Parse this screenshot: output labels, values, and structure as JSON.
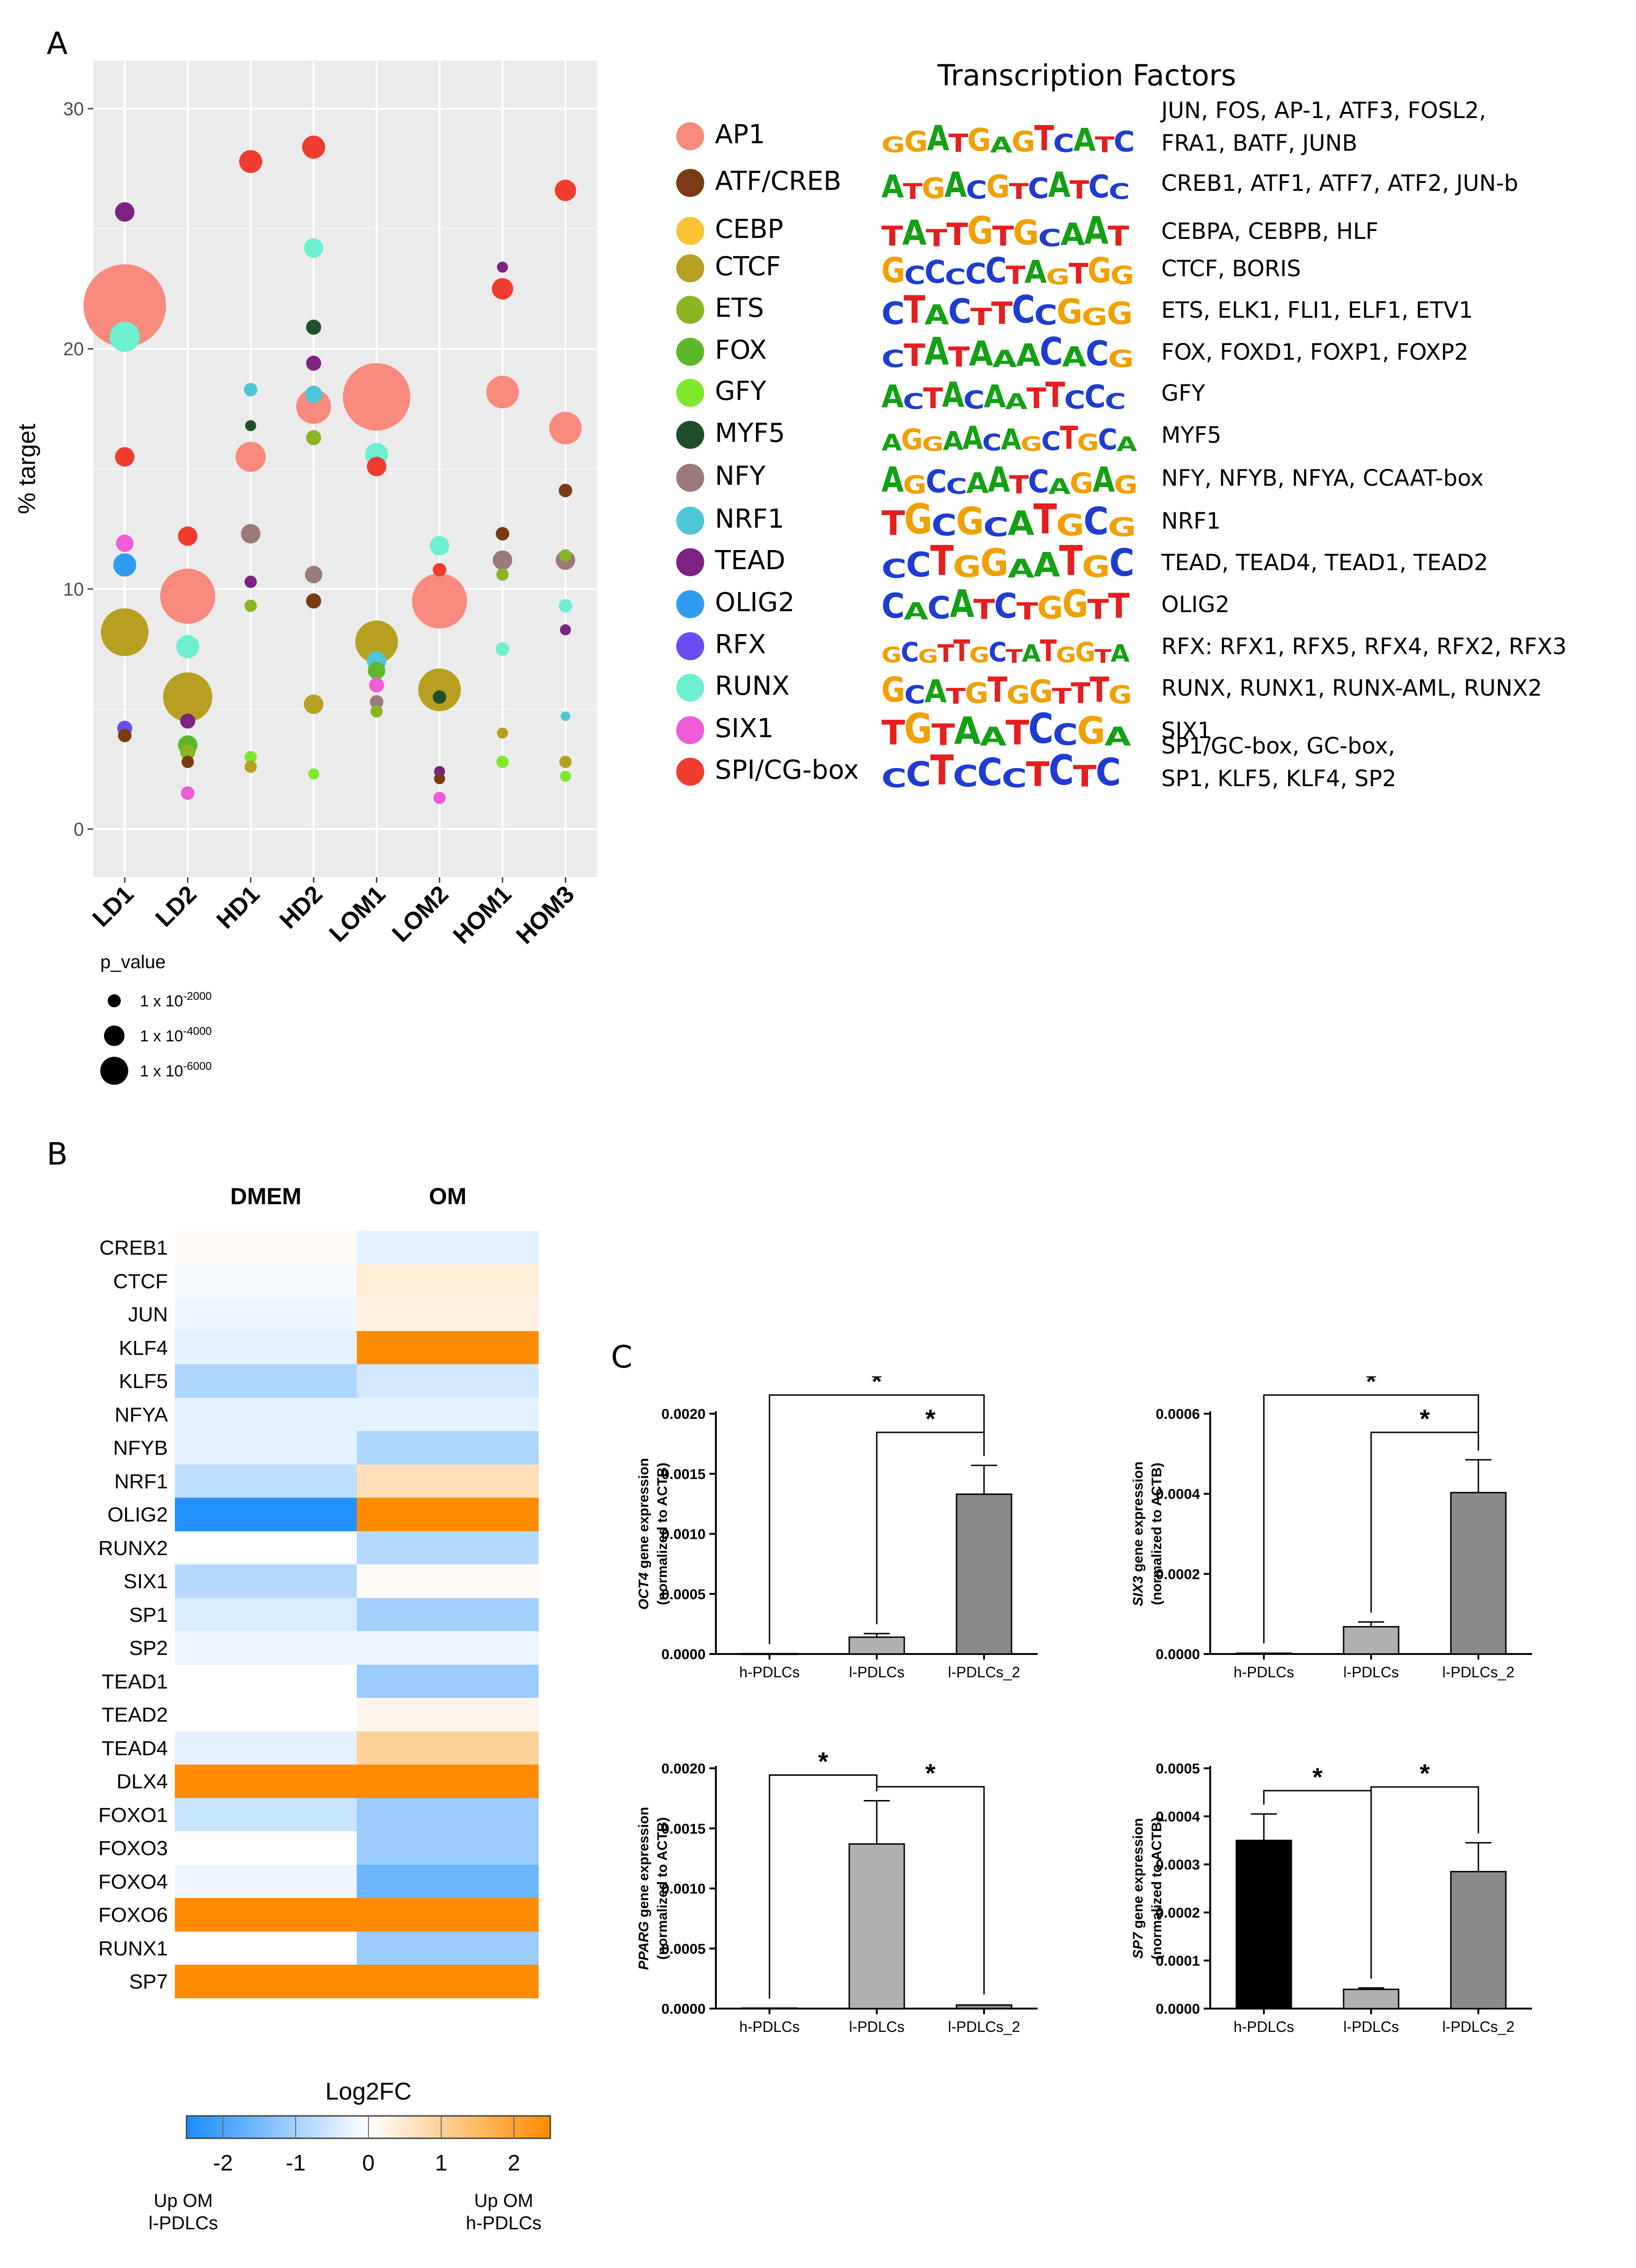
{
  "panels": {
    "a": "A",
    "b": "B",
    "c": "C"
  },
  "chart_data": [
    {
      "id": "bubble",
      "type": "scatter",
      "ylabel": "% target",
      "ylim": [
        -2,
        32
      ],
      "yticks": [
        0,
        10,
        20,
        30
      ],
      "categories": [
        "LD1",
        "LD2",
        "HD1",
        "HD2",
        "LOM1",
        "LOM2",
        "HOM1",
        "HOM3"
      ],
      "size_legend": {
        "title": "p_value",
        "entries": [
          {
            "base": "1 x 10",
            "exp": "-2000",
            "size": 2000
          },
          {
            "base": "1 x 10",
            "exp": "-4000",
            "size": 4000
          },
          {
            "base": "1 x 10",
            "exp": "-6000",
            "size": 6000
          }
        ]
      },
      "points": [
        {
          "x": "LD1",
          "y": 21.8,
          "tf": "AP1",
          "size": 4500
        },
        {
          "x": "LD1",
          "y": 25.7,
          "tf": "TEAD",
          "size": 250
        },
        {
          "x": "LD1",
          "y": 20.5,
          "tf": "RUNX",
          "size": 600
        },
        {
          "x": "LD1",
          "y": 15.5,
          "tf": "SPI/CG-box",
          "size": 250
        },
        {
          "x": "LD1",
          "y": 11.9,
          "tf": "SIX1",
          "size": 200
        },
        {
          "x": "LD1",
          "y": 11.0,
          "tf": "OLIG2",
          "size": 350
        },
        {
          "x": "LD1",
          "y": 8.2,
          "tf": "CTCF",
          "size": 1500
        },
        {
          "x": "LD1",
          "y": 4.2,
          "tf": "RFX",
          "size": 150
        },
        {
          "x": "LD1",
          "y": 3.9,
          "tf": "ATF/CREB",
          "size": 120
        },
        {
          "x": "LD2",
          "y": 12.2,
          "tf": "SPI/CG-box",
          "size": 250
        },
        {
          "x": "LD2",
          "y": 9.7,
          "tf": "AP1",
          "size": 2000
        },
        {
          "x": "LD2",
          "y": 7.6,
          "tf": "RUNX",
          "size": 350
        },
        {
          "x": "LD2",
          "y": 5.5,
          "tf": "CTCF",
          "size": 1600
        },
        {
          "x": "LD2",
          "y": 4.5,
          "tf": "TEAD",
          "size": 150
        },
        {
          "x": "LD2",
          "y": 3.5,
          "tf": "FOX",
          "size": 250
        },
        {
          "x": "LD2",
          "y": 3.2,
          "tf": "ETS",
          "size": 150
        },
        {
          "x": "LD2",
          "y": 2.8,
          "tf": "ATF/CREB",
          "size": 100
        },
        {
          "x": "LD2",
          "y": 1.5,
          "tf": "SIX1",
          "size": 120
        },
        {
          "x": "HD1",
          "y": 27.8,
          "tf": "SPI/CG-box",
          "size": 350
        },
        {
          "x": "HD1",
          "y": 18.3,
          "tf": "NRF1",
          "size": 120
        },
        {
          "x": "HD1",
          "y": 16.8,
          "tf": "MYF5",
          "size": 80
        },
        {
          "x": "HD1",
          "y": 15.5,
          "tf": "AP1",
          "size": 600
        },
        {
          "x": "HD1",
          "y": 12.3,
          "tf": "NFY",
          "size": 250
        },
        {
          "x": "HD1",
          "y": 10.3,
          "tf": "TEAD",
          "size": 100
        },
        {
          "x": "HD1",
          "y": 9.3,
          "tf": "ETS",
          "size": 100
        },
        {
          "x": "HD1",
          "y": 3.0,
          "tf": "GFY",
          "size": 100
        },
        {
          "x": "HD1",
          "y": 2.6,
          "tf": "CTCF",
          "size": 100
        },
        {
          "x": "HD2",
          "y": 28.4,
          "tf": "SPI/CG-box",
          "size": 350
        },
        {
          "x": "HD2",
          "y": 24.2,
          "tf": "RUNX",
          "size": 250
        },
        {
          "x": "HD2",
          "y": 20.9,
          "tf": "MYF5",
          "size": 150
        },
        {
          "x": "HD2",
          "y": 19.4,
          "tf": "TEAD",
          "size": 150
        },
        {
          "x": "HD2",
          "y": 18.1,
          "tf": "NRF1",
          "size": 200
        },
        {
          "x": "HD2",
          "y": 17.6,
          "tf": "AP1",
          "size": 800
        },
        {
          "x": "HD2",
          "y": 16.3,
          "tf": "ETS",
          "size": 150
        },
        {
          "x": "HD2",
          "y": 10.6,
          "tf": "NFY",
          "size": 200
        },
        {
          "x": "HD2",
          "y": 9.5,
          "tf": "ATF/CREB",
          "size": 150
        },
        {
          "x": "HD2",
          "y": 5.2,
          "tf": "CTCF",
          "size": 250
        },
        {
          "x": "HD2",
          "y": 2.3,
          "tf": "GFY",
          "size": 80
        },
        {
          "x": "LOM1",
          "y": 18.0,
          "tf": "AP1",
          "size": 3000
        },
        {
          "x": "LOM1",
          "y": 15.6,
          "tf": "RUNX",
          "size": 350
        },
        {
          "x": "LOM1",
          "y": 15.1,
          "tf": "SPI/CG-box",
          "size": 250
        },
        {
          "x": "LOM1",
          "y": 7.8,
          "tf": "CTCF",
          "size": 1200
        },
        {
          "x": "LOM1",
          "y": 7.0,
          "tf": "NRF1",
          "size": 250
        },
        {
          "x": "LOM1",
          "y": 6.6,
          "tf": "FOX",
          "size": 200
        },
        {
          "x": "LOM1",
          "y": 6.0,
          "tf": "SIX1",
          "size": 150
        },
        {
          "x": "LOM1",
          "y": 5.3,
          "tf": "NFY",
          "size": 120
        },
        {
          "x": "LOM1",
          "y": 4.9,
          "tf": "ETS",
          "size": 100
        },
        {
          "x": "LOM2",
          "y": 11.8,
          "tf": "RUNX",
          "size": 250
        },
        {
          "x": "LOM2",
          "y": 10.8,
          "tf": "SPI/CG-box",
          "size": 120
        },
        {
          "x": "LOM2",
          "y": 9.5,
          "tf": "AP1",
          "size": 2000
        },
        {
          "x": "LOM2",
          "y": 5.8,
          "tf": "CTCF",
          "size": 1200
        },
        {
          "x": "LOM2",
          "y": 5.5,
          "tf": "MYF5",
          "size": 120
        },
        {
          "x": "LOM2",
          "y": 2.4,
          "tf": "TEAD",
          "size": 80
        },
        {
          "x": "LOM2",
          "y": 2.1,
          "tf": "ATF/CREB",
          "size": 80
        },
        {
          "x": "LOM2",
          "y": 1.3,
          "tf": "SIX1",
          "size": 100
        },
        {
          "x": "HOM1",
          "y": 23.4,
          "tf": "TEAD",
          "size": 80
        },
        {
          "x": "HOM1",
          "y": 22.5,
          "tf": "SPI/CG-box",
          "size": 300
        },
        {
          "x": "HOM1",
          "y": 18.2,
          "tf": "AP1",
          "size": 700
        },
        {
          "x": "HOM1",
          "y": 12.3,
          "tf": "ATF/CREB",
          "size": 120
        },
        {
          "x": "HOM1",
          "y": 11.2,
          "tf": "NFY",
          "size": 250
        },
        {
          "x": "HOM1",
          "y": 10.6,
          "tf": "ETS",
          "size": 100
        },
        {
          "x": "HOM1",
          "y": 7.5,
          "tf": "RUNX",
          "size": 120
        },
        {
          "x": "HOM1",
          "y": 4.0,
          "tf": "CTCF",
          "size": 80
        },
        {
          "x": "HOM1",
          "y": 2.8,
          "tf": "GFY",
          "size": 100
        },
        {
          "x": "HOM3",
          "y": 26.6,
          "tf": "SPI/CG-box",
          "size": 300
        },
        {
          "x": "HOM3",
          "y": 16.7,
          "tf": "AP1",
          "size": 700
        },
        {
          "x": "HOM3",
          "y": 14.1,
          "tf": "ATF/CREB",
          "size": 120
        },
        {
          "x": "HOM3",
          "y": 11.4,
          "tf": "ETS",
          "size": 100
        },
        {
          "x": "HOM3",
          "y": 11.2,
          "tf": "NFY",
          "size": 250
        },
        {
          "x": "HOM3",
          "y": 9.3,
          "tf": "RUNX",
          "size": 120
        },
        {
          "x": "HOM3",
          "y": 8.3,
          "tf": "TEAD",
          "size": 80
        },
        {
          "x": "HOM3",
          "y": 4.7,
          "tf": "NRF1",
          "size": 60
        },
        {
          "x": "HOM3",
          "y": 2.8,
          "tf": "CTCF",
          "size": 100
        },
        {
          "x": "HOM3",
          "y": 2.2,
          "tf": "GFY",
          "size": 80
        }
      ]
    },
    {
      "id": "heatmap",
      "type": "heatmap",
      "columns": [
        "DMEM",
        "OM"
      ],
      "rows": [
        "CREB1",
        "CTCF",
        "JUN",
        "KLF4",
        "KLF5",
        "NFYA",
        "NFYB",
        "NRF1",
        "OLIG2",
        "RUNX2",
        "SIX1",
        "SP1",
        "SP2",
        "TEAD1",
        "TEAD2",
        "TEAD4",
        "DLX4",
        "FOXO1",
        "FOXO3",
        "FOXO4",
        "FOXO6",
        "RUNX1",
        "SP7"
      ],
      "values": [
        [
          0.1,
          -0.3
        ],
        [
          -0.1,
          0.4
        ],
        [
          -0.2,
          0.3
        ],
        [
          -0.3,
          2.5
        ],
        [
          -0.9,
          -0.5
        ],
        [
          -0.3,
          -0.3
        ],
        [
          -0.3,
          -0.9
        ],
        [
          -0.7,
          0.7
        ],
        [
          -2.4,
          2.5
        ],
        [
          0.0,
          -0.8
        ],
        [
          -0.8,
          0.1
        ],
        [
          -0.4,
          -1.0
        ],
        [
          -0.2,
          -0.2
        ],
        [
          0.0,
          -1.1
        ],
        [
          0.0,
          0.2
        ],
        [
          -0.3,
          1.0
        ],
        [
          2.5,
          2.5
        ],
        [
          -0.6,
          -1.1
        ],
        [
          0.0,
          -1.1
        ],
        [
          -0.2,
          -1.6
        ],
        [
          2.5,
          2.5
        ],
        [
          0.0,
          -1.1
        ],
        [
          2.5,
          2.5
        ]
      ],
      "colorbar": {
        "title": "Log2FC",
        "range": [
          -2.5,
          2.5
        ],
        "ticks": [
          -2,
          -1,
          0,
          1,
          2
        ],
        "low_color": "#1a8cff",
        "mid_color": "#ffffff",
        "high_color": "#ff8c00"
      },
      "annotations": {
        "left": [
          "Up OM",
          "l-PDLCs"
        ],
        "right": [
          "Up OM",
          "h-PDLCs"
        ]
      }
    },
    {
      "id": "oct4",
      "type": "bar",
      "gene": "OCT4",
      "ylabel_rest": " gene expression",
      "ylabel_line2": "(normalized to ACTB)",
      "categories": [
        "h-PDLCs",
        "l-PDLCs",
        "l-PDLCs_2"
      ],
      "values": [
        3e-06,
        0.00014,
        0.00133
      ],
      "errors": [
        1e-06,
        3e-05,
        0.00024
      ],
      "colors": [
        "#000000",
        "#b0b0b0",
        "#8a8a8a"
      ],
      "ylim": [
        0,
        0.002
      ],
      "yticks": [
        "0.0000",
        "0.0005",
        "0.0010",
        "0.0015",
        "0.0020"
      ],
      "significance": [
        {
          "from": 0,
          "to": 2,
          "label": "*"
        },
        {
          "from": 1,
          "to": 2,
          "label": "*"
        }
      ]
    },
    {
      "id": "six3",
      "type": "bar",
      "gene": "SIX3",
      "ylabel_rest": " gene expression",
      "ylabel_line2": "(normalized to ACTB)",
      "categories": [
        "h-PDLCs",
        "l-PDLCs",
        "l-PDLCs_2"
      ],
      "values": [
        2e-06,
        6.8e-05,
        0.000403
      ],
      "errors": [
        1e-06,
        1.2e-05,
        8.2e-05
      ],
      "colors": [
        "#000000",
        "#b0b0b0",
        "#8a8a8a"
      ],
      "ylim": [
        0,
        0.0006
      ],
      "yticks": [
        "0.0000",
        "0.0002",
        "0.0004",
        "0.0006"
      ],
      "significance": [
        {
          "from": 0,
          "to": 2,
          "label": "*"
        },
        {
          "from": 1,
          "to": 2,
          "label": "*"
        }
      ]
    },
    {
      "id": "pparg",
      "type": "bar",
      "gene": "PPARG",
      "ylabel_rest": " gene expression",
      "ylabel_line2": "(normalized to ACTB)",
      "categories": [
        "h-PDLCs",
        "l-PDLCs",
        "l-PDLCs_2"
      ],
      "values": [
        4e-06,
        0.00137,
        3e-05
      ],
      "errors": [
        1e-06,
        0.00036,
        1e-05
      ],
      "colors": [
        "#000000",
        "#b0b0b0",
        "#8a8a8a"
      ],
      "ylim": [
        0,
        0.002
      ],
      "yticks": [
        "0.0000",
        "0.0005",
        "0.0010",
        "0.0015",
        "0.0020"
      ],
      "significance": [
        {
          "from": 0,
          "to": 1,
          "label": "*"
        },
        {
          "from": 1,
          "to": 2,
          "label": "*"
        }
      ]
    },
    {
      "id": "sp7",
      "type": "bar",
      "gene": "SP7",
      "ylabel_rest": " gene expression",
      "ylabel_line2": "(normalized to ACTB)",
      "categories": [
        "h-PDLCs",
        "l-PDLCs",
        "l-PDLCs_2"
      ],
      "values": [
        0.00035,
        4e-05,
        0.000285
      ],
      "errors": [
        5.5e-05,
        3e-06,
        6e-05
      ],
      "colors": [
        "#000000",
        "#b0b0b0",
        "#8a8a8a"
      ],
      "ylim": [
        0,
        0.0005
      ],
      "yticks": [
        "0.0000",
        "0.0001",
        "0.0002",
        "0.0003",
        "0.0004",
        "0.0005"
      ],
      "significance": [
        {
          "from": 0,
          "to": 1,
          "label": "*"
        },
        {
          "from": 1,
          "to": 2,
          "label": "*"
        }
      ]
    }
  ],
  "tf_legend": {
    "title": "Transcription Factors",
    "items": [
      {
        "name": "AP1",
        "color": "#f88a7e",
        "motif": "GGATGAGTCATC",
        "genes": "JUN, FOS, AP-1, ATF3, FOSL2,\nFRA1, BATF, JUNB"
      },
      {
        "name": "ATF/CREB",
        "color": "#7a3a14",
        "motif": "ATGACGTCATCC",
        "genes": "CREB1, ATF1, ATF7, ATF2, JUN-b"
      },
      {
        "name": "CEBP",
        "color": "#f8c233",
        "motif": "TATTGTGCAAT",
        "genes": "CEBPA, CEBPB, HLF"
      },
      {
        "name": "CTCF",
        "color": "#b7a020",
        "motif": "GCCCCCTAGTGG",
        "genes": "CTCF, BORIS"
      },
      {
        "name": "ETS",
        "color": "#8ab422",
        "motif": "CTACTTCCGGG",
        "genes": "ETS, ELK1, FLI1, ELF1, ETV1"
      },
      {
        "name": "FOX",
        "color": "#5cb82a",
        "motif": "CTATAAACACG",
        "genes": "FOX, FOXD1, FOXP1, FOXP2"
      },
      {
        "name": "GFY",
        "color": "#7ee82e",
        "motif": "ACTACAATTCCC",
        "genes": "GFY"
      },
      {
        "name": "MYF5",
        "color": "#1e4f2a",
        "motif": "AGGAACAGCTGCA",
        "genes": "MYF5"
      },
      {
        "name": "NFY",
        "color": "#9c7a7a",
        "motif": "AGCCAATCAGAG",
        "genes": "NFY, NFYB, NFYA, CCAAT-box"
      },
      {
        "name": "NRF1",
        "color": "#4fc6d6",
        "motif": "TGCGCATGCG",
        "genes": "NRF1"
      },
      {
        "name": "TEAD",
        "color": "#7c2381",
        "motif": "CCTGGAATGC",
        "genes": "TEAD, TEAD4, TEAD1, TEAD2"
      },
      {
        "name": "OLIG2",
        "color": "#2f9cf0",
        "motif": "CACATCTGGTT",
        "genes": "OLIG2"
      },
      {
        "name": "RFX",
        "color": "#6a4cf0",
        "motif": "GCGTTGCTATGGTA",
        "genes": "RFX: RFX1, RFX5, RFX4, RFX2, RFX3"
      },
      {
        "name": "RUNX",
        "color": "#6df0cf",
        "motif": "GCATGTGGTTTG",
        "genes": "RUNX, RUNX1, RUNX-AML, RUNX2"
      },
      {
        "name": "SIX1",
        "color": "#ee5cd8",
        "motif": "TGTAATCCGA",
        "genes": "SIX1"
      },
      {
        "name": "SPI/CG-box",
        "color": "#f03c2e",
        "motif": "CCTCCCTCTC",
        "genes": "SP1/GC-box, GC-box,\nSP1, KLF5, KLF4, SP2"
      }
    ]
  }
}
